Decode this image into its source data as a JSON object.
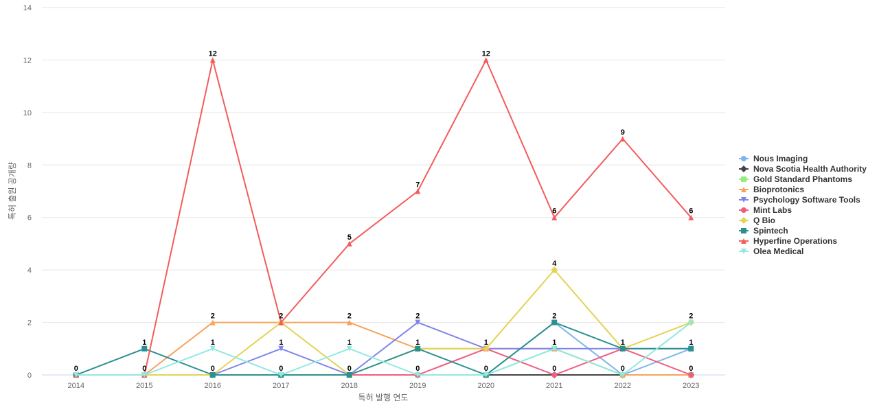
{
  "chart_data": {
    "type": "line",
    "title": "",
    "xlabel": "특허 발행 연도",
    "ylabel": "특허 출원 공개량",
    "x": [
      "2014",
      "2015",
      "2016",
      "2017",
      "2018",
      "2019",
      "2020",
      "2021",
      "2022",
      "2023"
    ],
    "ylim": [
      0,
      14
    ],
    "yticks": [
      0,
      2,
      4,
      6,
      8,
      10,
      12,
      14
    ],
    "grid": true,
    "legend": "right",
    "series": [
      {
        "name": "Nous Imaging",
        "color": "#7cb5ec",
        "marker": "circle",
        "values": [
          0,
          0,
          0,
          0,
          0,
          0,
          0,
          2,
          0,
          1
        ]
      },
      {
        "name": "Nova Scotia Health Authority",
        "color": "#434348",
        "marker": "diamond",
        "values": [
          0,
          0,
          0,
          0,
          0,
          0,
          0,
          0,
          0,
          0
        ]
      },
      {
        "name": "Gold Standard Phantoms",
        "color": "#90ed7d",
        "marker": "square",
        "values": [
          0,
          0,
          0,
          0,
          0,
          0,
          0,
          1,
          0,
          0
        ]
      },
      {
        "name": "Bioprotonics",
        "color": "#f7a35c",
        "marker": "triangle",
        "values": [
          0,
          0,
          2,
          2,
          2,
          1,
          1,
          1,
          0,
          0
        ]
      },
      {
        "name": "Psychology Software Tools",
        "color": "#8085e9",
        "marker": "triangle-down",
        "values": [
          0,
          0,
          0,
          1,
          0,
          2,
          1,
          1,
          1,
          1
        ]
      },
      {
        "name": "Mint Labs",
        "color": "#f15c80",
        "marker": "circle",
        "values": [
          0,
          0,
          0,
          0,
          0,
          0,
          1,
          0,
          1,
          0
        ]
      },
      {
        "name": "Q Bio",
        "color": "#e4d354",
        "marker": "diamond",
        "values": [
          0,
          0,
          0,
          2,
          0,
          1,
          1,
          4,
          1,
          2
        ]
      },
      {
        "name": "Spintech",
        "color": "#2b908f",
        "marker": "square",
        "values": [
          0,
          1,
          0,
          0,
          0,
          1,
          0,
          2,
          1,
          1
        ]
      },
      {
        "name": "Hyperfine Operations",
        "color": "#f45b5b",
        "marker": "triangle",
        "values": [
          0,
          0,
          12,
          2,
          5,
          7,
          12,
          6,
          9,
          6
        ]
      },
      {
        "name": "Olea Medical",
        "color": "#91e8e1",
        "marker": "triangle-down",
        "values": [
          0,
          0,
          1,
          0,
          1,
          0,
          0,
          1,
          0,
          2
        ]
      }
    ],
    "data_labels": [
      {
        "series": "Spintech",
        "x": "2014",
        "value": 0
      },
      {
        "series": "Spintech",
        "x": "2015",
        "value": 1
      },
      {
        "series": "Bioprotonics",
        "x": "2015",
        "value": 0
      },
      {
        "series": "Hyperfine Operations",
        "x": "2016",
        "value": 12
      },
      {
        "series": "Bioprotonics",
        "x": "2016",
        "value": 2
      },
      {
        "series": "Olea Medical",
        "x": "2016",
        "value": 1
      },
      {
        "series": "Spintech",
        "x": "2016",
        "value": 0
      },
      {
        "series": "Hyperfine Operations",
        "x": "2017",
        "value": 2
      },
      {
        "series": "Psychology Software Tools",
        "x": "2017",
        "value": 1
      },
      {
        "series": "Spintech",
        "x": "2017",
        "value": 0
      },
      {
        "series": "Hyperfine Operations",
        "x": "2018",
        "value": 5
      },
      {
        "series": "Bioprotonics",
        "x": "2018",
        "value": 2
      },
      {
        "series": "Olea Medical",
        "x": "2018",
        "value": 1
      },
      {
        "series": "Spintech",
        "x": "2018",
        "value": 0
      },
      {
        "series": "Hyperfine Operations",
        "x": "2019",
        "value": 7
      },
      {
        "series": "Psychology Software Tools",
        "x": "2019",
        "value": 2
      },
      {
        "series": "Spintech",
        "x": "2019",
        "value": 1
      },
      {
        "series": "Mint Labs",
        "x": "2019",
        "value": 0
      },
      {
        "series": "Hyperfine Operations",
        "x": "2020",
        "value": 12
      },
      {
        "series": "Q Bio",
        "x": "2020",
        "value": 1
      },
      {
        "series": "Spintech",
        "x": "2020",
        "value": 0
      },
      {
        "series": "Hyperfine Operations",
        "x": "2021",
        "value": 6
      },
      {
        "series": "Q Bio",
        "x": "2021",
        "value": 4
      },
      {
        "series": "Spintech",
        "x": "2021",
        "value": 2
      },
      {
        "series": "Psychology Software Tools",
        "x": "2021",
        "value": 1
      },
      {
        "series": "Mint Labs",
        "x": "2021",
        "value": 0
      },
      {
        "series": "Hyperfine Operations",
        "x": "2022",
        "value": 9
      },
      {
        "series": "Spintech",
        "x": "2022",
        "value": 1
      },
      {
        "series": "Nous Imaging",
        "x": "2022",
        "value": 0
      },
      {
        "series": "Hyperfine Operations",
        "x": "2023",
        "value": 6
      },
      {
        "series": "Q Bio",
        "x": "2023",
        "value": 2
      },
      {
        "series": "Spintech",
        "x": "2023",
        "value": 1
      },
      {
        "series": "Mint Labs",
        "x": "2023",
        "value": 0
      }
    ]
  }
}
